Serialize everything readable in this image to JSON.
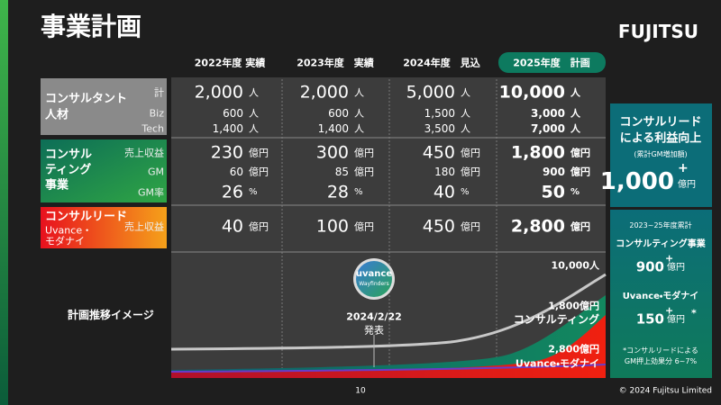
{
  "header": {
    "title": "事業計画",
    "logo": "FUJITSU"
  },
  "columns": [
    "2022年度 実績",
    "2023年度　実績",
    "2024年度　見込",
    "2025年度　計画"
  ],
  "rows": [
    {
      "label": [
        "コンサルタント",
        "人材"
      ],
      "sublabels": [
        "計",
        "Biz",
        "Tech"
      ],
      "cells": [
        [
          {
            "value": "2,000",
            "unit": "人"
          },
          {
            "value": "600",
            "unit": "人"
          },
          {
            "value": "1,400",
            "unit": "人"
          }
        ],
        [
          {
            "value": "2,000",
            "unit": "人"
          },
          {
            "value": "600",
            "unit": "人"
          },
          {
            "value": "1,400",
            "unit": "人"
          }
        ],
        [
          {
            "value": "5,000",
            "unit": "人"
          },
          {
            "value": "1,500",
            "unit": "人"
          },
          {
            "value": "3,500",
            "unit": "人"
          }
        ],
        [
          {
            "value": "10,000",
            "unit": "人"
          },
          {
            "value": "3,000",
            "unit": "人"
          },
          {
            "value": "7,000",
            "unit": "人"
          }
        ]
      ]
    },
    {
      "label": [
        "コンサル",
        "ティング",
        "事業"
      ],
      "sublabels": [
        "売上収益",
        "GM",
        "GM率"
      ],
      "cells": [
        [
          {
            "value": "230",
            "unit": "億円"
          },
          {
            "value": "60",
            "unit": "億円"
          },
          {
            "value": "26",
            "unit": "%"
          }
        ],
        [
          {
            "value": "300",
            "unit": "億円"
          },
          {
            "value": "85",
            "unit": "億円"
          },
          {
            "value": "28",
            "unit": "%"
          }
        ],
        [
          {
            "value": "450",
            "unit": "億円"
          },
          {
            "value": "180",
            "unit": "億円"
          },
          {
            "value": "40",
            "unit": "%"
          }
        ],
        [
          {
            "value": "1,800",
            "unit": "億円"
          },
          {
            "value": "900",
            "unit": "億円"
          },
          {
            "value": "50",
            "unit": "%"
          }
        ]
      ]
    },
    {
      "label": [
        "コンサルリード",
        "Uvance・",
        "モダナイ"
      ],
      "sublabels": [
        "売上収益"
      ],
      "cells": [
        [
          {
            "value": "40",
            "unit": "億円"
          }
        ],
        [
          {
            "value": "100",
            "unit": "億円"
          }
        ],
        [
          {
            "value": "450",
            "unit": "億円"
          }
        ],
        [
          {
            "value": "2,800",
            "unit": "億円"
          }
        ]
      ]
    }
  ],
  "chart": {
    "label": "計画推移イメージ",
    "badge": [
      "uvance",
      "Wayfinders"
    ],
    "date": "2024/2/22",
    "event": "発表",
    "annotations": [
      "10,000人",
      "1,800億円",
      "コンサルティング",
      "2,800億円",
      "Uvance・モダナイ"
    ]
  },
  "panel": {
    "title": [
      "コンサルリード",
      "による利益向上"
    ],
    "subtitle": "(累計GM増加額)",
    "total": "1,000",
    "plus": "+",
    "unit": "億円",
    "period": "2023~25年度累計",
    "items": [
      {
        "name": "コンサルティング事業",
        "value": "900",
        "plus": "+",
        "unit": "億円"
      },
      {
        "name": "Uvance・モダナイ",
        "value": "150",
        "plus": "+",
        "unit": "億円",
        "mark": "*"
      }
    ],
    "note": [
      "*コンサルリードによる",
      "GM押上効果分 6~7%"
    ]
  },
  "footer": {
    "page": "10",
    "copyright": "© 2024 Fujitsu Limited"
  }
}
